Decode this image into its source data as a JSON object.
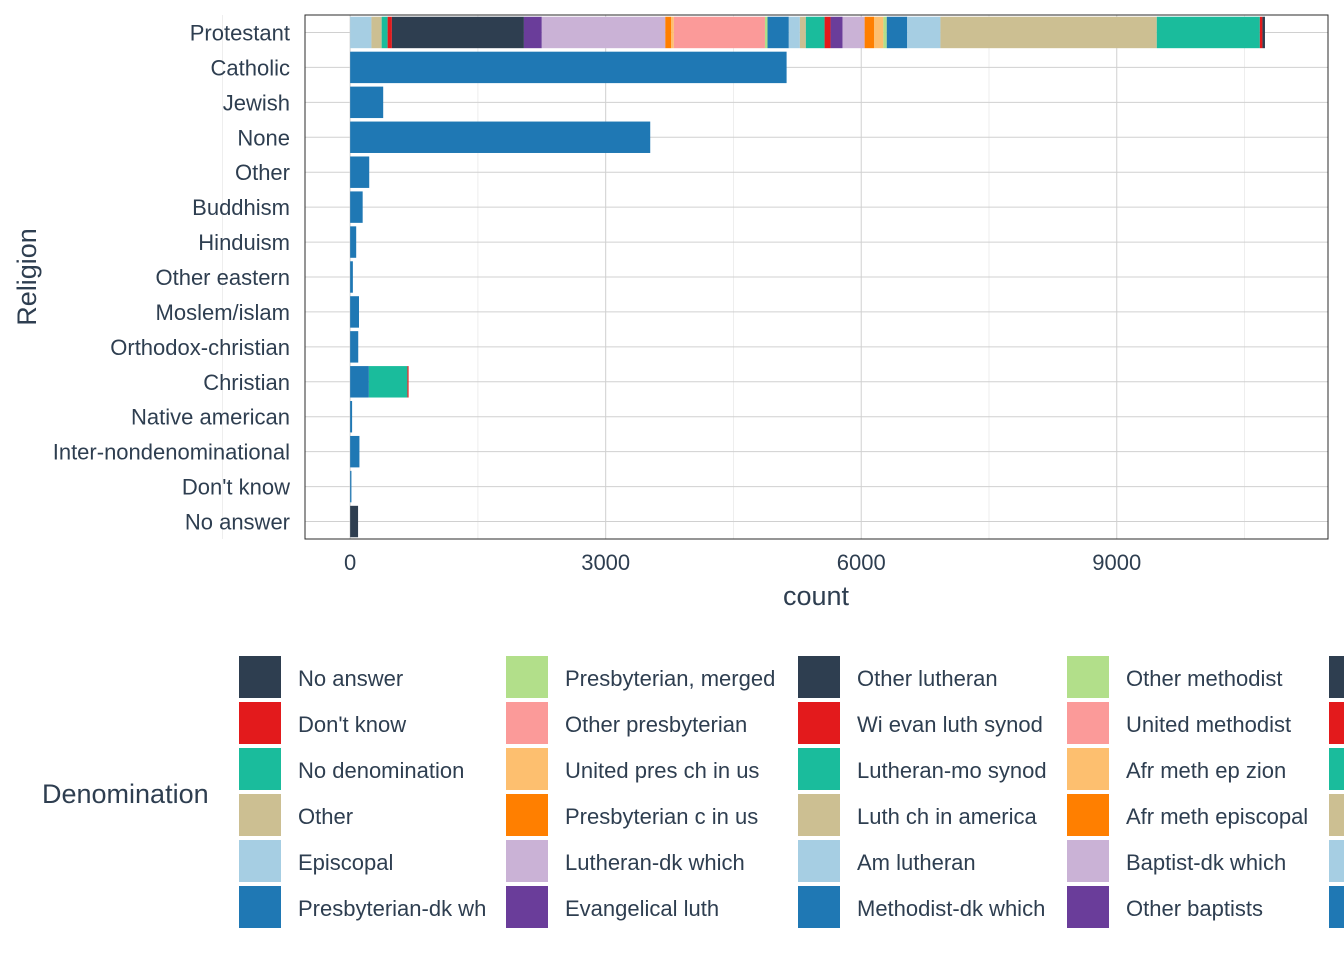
{
  "chart_data": {
    "type": "bar",
    "orientation": "horizontal",
    "stacked": true,
    "xlabel": "count",
    "ylabel": "Religion",
    "xlim": [
      -530,
      11480
    ],
    "xticks": [
      0,
      3000,
      6000,
      9000
    ],
    "grid": true,
    "legend_position": "bottom",
    "legend_title": "Denomination",
    "categories": [
      "Protestant",
      "Catholic",
      "Jewish",
      "None",
      "Other",
      "Buddhism",
      "Hinduism",
      "Other eastern",
      "Moslem/islam",
      "Orthodox-christian",
      "Christian",
      "Native american",
      "Inter-nondenominational",
      "Don't know",
      "No answer"
    ],
    "legend_entries": [
      {
        "name": "No answer",
        "color": "#2E3E50"
      },
      {
        "name": "Don't know",
        "color": "#E31A1C"
      },
      {
        "name": "No denomination",
        "color": "#1ABC9C"
      },
      {
        "name": "Other",
        "color": "#CCBF92"
      },
      {
        "name": "Episcopal",
        "color": "#A6CEE3"
      },
      {
        "name": "Presbyterian-dk wh",
        "color": "#1F78B4"
      },
      {
        "name": "Presbyterian, merged",
        "color": "#B2DF8A"
      },
      {
        "name": "Other presbyterian",
        "color": "#FB9A99"
      },
      {
        "name": "United pres ch in us",
        "color": "#FDBF6F"
      },
      {
        "name": "Presbyterian c in us",
        "color": "#FF7F00"
      },
      {
        "name": "Lutheran-dk which",
        "color": "#CAB2D6"
      },
      {
        "name": "Evangelical luth",
        "color": "#6A3D9A"
      },
      {
        "name": "Other lutheran",
        "color": "#2E3E50"
      },
      {
        "name": "Wi evan luth synod",
        "color": "#E31A1C"
      },
      {
        "name": "Lutheran-mo synod",
        "color": "#1ABC9C"
      },
      {
        "name": "Luth ch in america",
        "color": "#CCBF92"
      },
      {
        "name": "Am lutheran",
        "color": "#A6CEE3"
      },
      {
        "name": "Methodist-dk which",
        "color": "#1F78B4"
      },
      {
        "name": "Other methodist",
        "color": "#B2DF8A"
      },
      {
        "name": "United methodist",
        "color": "#FB9A99"
      },
      {
        "name": "Afr meth ep zion",
        "color": "#FDBF6F"
      },
      {
        "name": "Afr meth episcopal",
        "color": "#FF7F00"
      },
      {
        "name": "Baptist-dk which",
        "color": "#CAB2D6"
      },
      {
        "name": "Other baptists",
        "color": "#6A3D9A"
      },
      {
        "name": "",
        "color": "#2E3E50"
      },
      {
        "name": "",
        "color": "#E31A1C"
      },
      {
        "name": "",
        "color": "#1ABC9C"
      },
      {
        "name": "",
        "color": "#CCBF92"
      },
      {
        "name": "",
        "color": "#A6CEE3"
      },
      {
        "name": "",
        "color": "#1F78B4"
      }
    ],
    "bars": [
      {
        "category": "Protestant",
        "segments": [
          {
            "color": "#A6CEE3",
            "value": 250
          },
          {
            "color": "#CCBF92",
            "value": 120
          },
          {
            "color": "#1ABC9C",
            "value": 70
          },
          {
            "color": "#E31A1C",
            "value": 50
          },
          {
            "color": "#2E3E50",
            "value": 1550
          },
          {
            "color": "#6A3D9A",
            "value": 210
          },
          {
            "color": "#CAB2D6",
            "value": 1450
          },
          {
            "color": "#FF7F00",
            "value": 70
          },
          {
            "color": "#FDBF6F",
            "value": 30
          },
          {
            "color": "#FB9A99",
            "value": 1070
          },
          {
            "color": "#B2DF8A",
            "value": 30
          },
          {
            "color": "#1F78B4",
            "value": 250
          },
          {
            "color": "#A6CEE3",
            "value": 130
          },
          {
            "color": "#CCBF92",
            "value": 70
          },
          {
            "color": "#1ABC9C",
            "value": 220
          },
          {
            "color": "#E31A1C",
            "value": 70
          },
          {
            "color": "#6A3D9A",
            "value": 140
          },
          {
            "color": "#CAB2D6",
            "value": 260
          },
          {
            "color": "#FF7F00",
            "value": 110
          },
          {
            "color": "#FDBF6F",
            "value": 110
          },
          {
            "color": "#B2DF8A",
            "value": 40
          },
          {
            "color": "#1F78B4",
            "value": 240
          },
          {
            "color": "#A6CEE3",
            "value": 390
          },
          {
            "color": "#CCBF92",
            "value": 2540
          },
          {
            "color": "#1ABC9C",
            "value": 1210
          },
          {
            "color": "#E31A1C",
            "value": 30
          },
          {
            "color": "#2E3E50",
            "value": 30
          }
        ]
      },
      {
        "category": "Catholic",
        "segments": [
          {
            "color": "#1F78B4",
            "value": 5124
          }
        ]
      },
      {
        "category": "Jewish",
        "segments": [
          {
            "color": "#1F78B4",
            "value": 388
          }
        ]
      },
      {
        "category": "None",
        "segments": [
          {
            "color": "#1F78B4",
            "value": 3523
          }
        ]
      },
      {
        "category": "Other",
        "segments": [
          {
            "color": "#1F78B4",
            "value": 224
          }
        ]
      },
      {
        "category": "Buddhism",
        "segments": [
          {
            "color": "#1F78B4",
            "value": 147
          }
        ]
      },
      {
        "category": "Hinduism",
        "segments": [
          {
            "color": "#1F78B4",
            "value": 71
          }
        ]
      },
      {
        "category": "Other eastern",
        "segments": [
          {
            "color": "#1F78B4",
            "value": 32
          }
        ]
      },
      {
        "category": "Moslem/islam",
        "segments": [
          {
            "color": "#1F78B4",
            "value": 104
          }
        ]
      },
      {
        "category": "Orthodox-christian",
        "segments": [
          {
            "color": "#1F78B4",
            "value": 95
          }
        ]
      },
      {
        "category": "Christian",
        "segments": [
          {
            "color": "#1F78B4",
            "value": 220
          },
          {
            "color": "#1ABC9C",
            "value": 452
          },
          {
            "color": "#E31A1C",
            "value": 14
          }
        ]
      },
      {
        "category": "Native american",
        "segments": [
          {
            "color": "#1F78B4",
            "value": 23
          }
        ]
      },
      {
        "category": "Inter-nondenominational",
        "segments": [
          {
            "color": "#1F78B4",
            "value": 109
          }
        ]
      },
      {
        "category": "Don't know",
        "segments": [
          {
            "color": "#1F78B4",
            "value": 15
          }
        ]
      },
      {
        "category": "No answer",
        "segments": [
          {
            "color": "#2E3E50",
            "value": 93
          }
        ]
      }
    ]
  }
}
